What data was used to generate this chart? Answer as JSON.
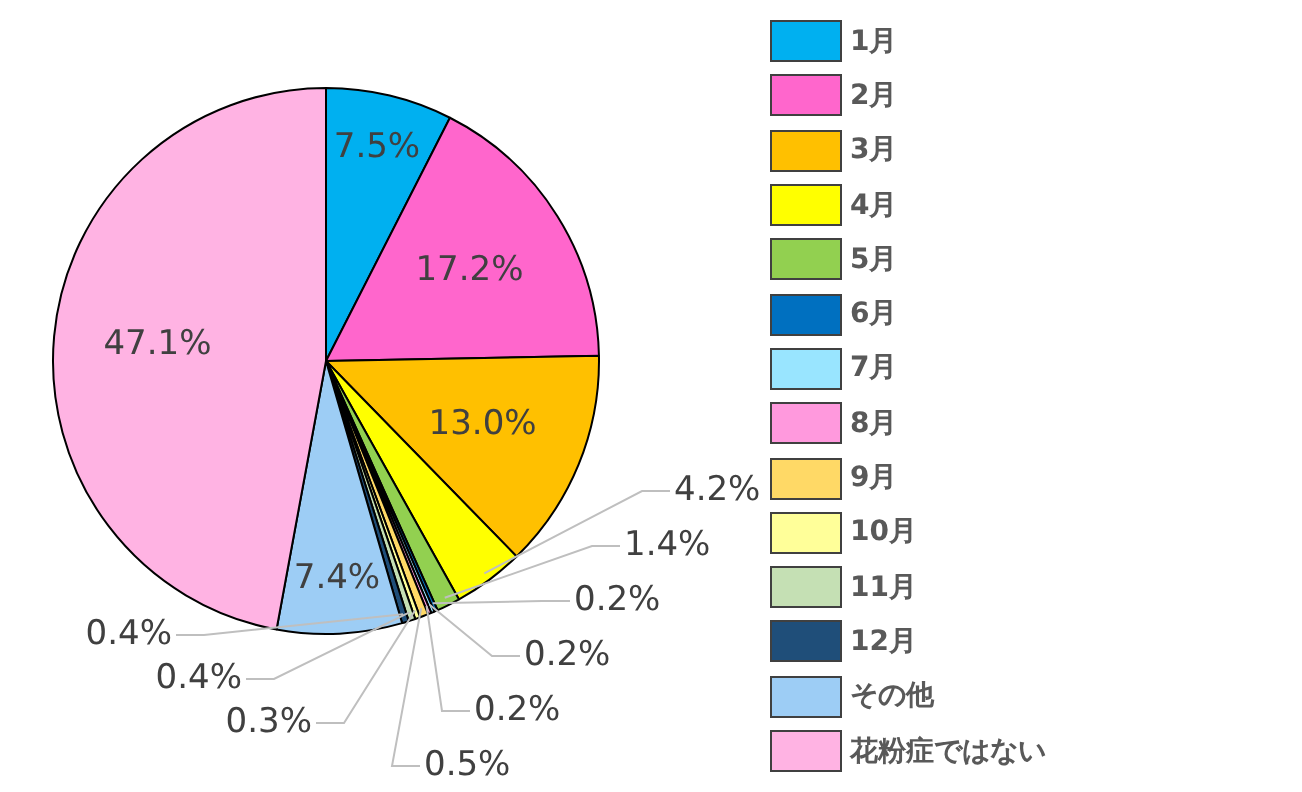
{
  "chart_data": {
    "type": "pie",
    "categories": [
      "1月",
      "2月",
      "3月",
      "4月",
      "5月",
      "6月",
      "7月",
      "8月",
      "9月",
      "10月",
      "11月",
      "12月",
      "その他",
      "花粉症ではない"
    ],
    "values": [
      7.5,
      17.2,
      13.0,
      4.2,
      1.4,
      0.2,
      0.2,
      0.2,
      0.5,
      0.3,
      0.4,
      0.4,
      7.4,
      47.1
    ],
    "value_labels": [
      "7.5%",
      "17.2%",
      "13.0%",
      "4.2%",
      "1.4%",
      "0.2%",
      "0.2%",
      "0.2%",
      "0.5%",
      "0.3%",
      "0.4%",
      "0.4%",
      "7.4%",
      "47.1%"
    ],
    "colors": [
      "#00b0f0",
      "#ff66cc",
      "#ffc000",
      "#ffff00",
      "#92d050",
      "#0070c0",
      "#99e5ff",
      "#ff99dd",
      "#ffd966",
      "#ffff99",
      "#c5e0b4",
      "#1f4e79",
      "#9dcdf5",
      "#ffb3e3"
    ],
    "legend": "right"
  }
}
